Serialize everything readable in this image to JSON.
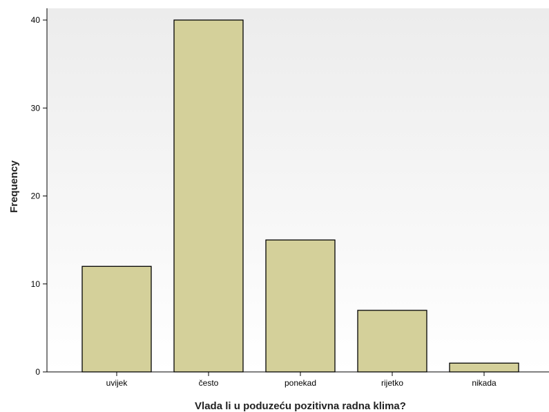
{
  "chart_data": {
    "type": "bar",
    "categories": [
      "uvijek",
      "često",
      "ponekad",
      "rijetko",
      "nikada"
    ],
    "values": [
      12,
      40,
      15,
      7,
      1
    ],
    "title": "",
    "xlabel": "Vlada li u poduzeću pozitivna radna klima?",
    "ylabel": "Frequency",
    "ylim": [
      0,
      42
    ],
    "yticks": [
      0,
      10,
      20,
      30,
      40
    ],
    "grid": false,
    "legend": "none",
    "colors": {
      "bar_fill": "#d4d09a",
      "bar_stroke": "#000000",
      "plot_background_top": "#ececec",
      "plot_background_bottom": "#ffffff"
    }
  }
}
